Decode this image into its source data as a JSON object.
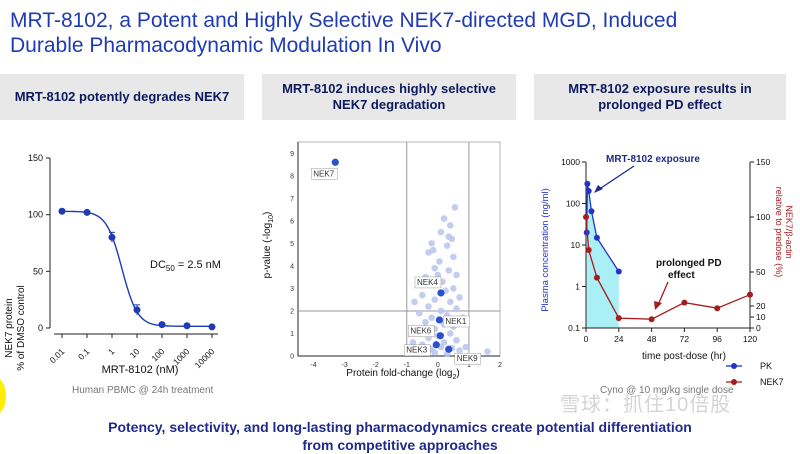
{
  "slide": {
    "title_line1": "MRT-8102, a Potent and Highly Selective NEK7-directed MGD, Induced",
    "title_line2": "Durable Pharmacodynamic Modulation In Vivo",
    "bottom_line1": "Potency, selectivity, and long-lasting pharmacodynamics create potential differentiation",
    "bottom_line2": "from competitive approaches",
    "watermark": "雪球：抓住10倍股"
  },
  "panels": {
    "left": {
      "header": "MRT-8102 potently degrades NEK7",
      "caption": "Human PBMC @ 24h treatment"
    },
    "middle": {
      "header_line1": "MRT-8102 induces highly selective",
      "header_line2": "NEK7 degradation"
    },
    "right": {
      "header_line1": "MRT-8102 exposure results in",
      "header_line2": "prolonged PD effect",
      "caption": "Cyno @ 10 mg/kg single dose"
    }
  },
  "chart_data": [
    {
      "type": "scatter",
      "title": "MRT-8102 potently degrades NEK7",
      "xlabel": "MRT-8102 (nM)",
      "ylabel_line1": "NEK7 protein",
      "ylabel_line2": "% of DMSO control",
      "xscale": "log",
      "x": [
        0.01,
        0.1,
        1,
        10,
        100,
        1000,
        10000
      ],
      "x_tick_labels": [
        "0.01",
        "0.1",
        "1",
        "10",
        "100",
        "1000",
        "10000"
      ],
      "y": [
        103,
        102,
        80,
        16,
        3,
        2,
        1
      ],
      "ylim": [
        0,
        150
      ],
      "y_ticks": [
        0,
        50,
        100,
        150
      ],
      "fit": "4-parameter logistic",
      "annotation_prefix": "DC",
      "annotation_sub": "50",
      "annotation_suffix": " = 2.5 nM",
      "color": "#1f3bb3"
    },
    {
      "type": "scatter",
      "title": "MRT-8102 induces highly selective NEK7 degradation",
      "xlabel": "Protein fold-change (log",
      "xlabel_sub": "2",
      "xlabel_close": ")",
      "ylabel": "p-value (-log",
      "ylabel_sub": "10",
      "ylabel_close": ")",
      "xlim": [
        -4.5,
        2
      ],
      "ylim": [
        0,
        9.5
      ],
      "x_ticks": [
        -4,
        -3,
        -2,
        -1,
        0,
        1,
        2
      ],
      "y_ticks": [
        0,
        1,
        2,
        3,
        4,
        5,
        6,
        7,
        8,
        9
      ],
      "threshold_x": [
        -1,
        1
      ],
      "threshold_y": 2,
      "highlighted": [
        {
          "label": "NEK7",
          "x": -3.3,
          "y": 8.6
        },
        {
          "label": "NEK4",
          "x": 0.1,
          "y": 2.8
        },
        {
          "label": "NEK1",
          "x": 0.05,
          "y": 1.6
        },
        {
          "label": "NEK6",
          "x": 0.08,
          "y": 0.9
        },
        {
          "label": "NEK3",
          "x": -0.05,
          "y": 0.5
        },
        {
          "label": "NEK9",
          "x": 0.35,
          "y": 0.3
        }
      ],
      "background_points": [
        [
          -0.2,
          5.0
        ],
        [
          0.1,
          5.5
        ],
        [
          0.3,
          4.9
        ],
        [
          0.4,
          5.8
        ],
        [
          0.2,
          6.1
        ],
        [
          -0.3,
          4.6
        ],
        [
          0.5,
          4.4
        ],
        [
          0.45,
          5.2
        ],
        [
          0.05,
          4.2
        ],
        [
          -0.1,
          3.9
        ],
        [
          0.35,
          3.8
        ],
        [
          0.6,
          3.6
        ],
        [
          -0.4,
          3.5
        ],
        [
          0.15,
          3.3
        ],
        [
          -0.2,
          3.2
        ],
        [
          0.5,
          3.0
        ],
        [
          0.25,
          2.9
        ],
        [
          -0.5,
          2.7
        ],
        [
          0.7,
          2.6
        ],
        [
          -0.1,
          2.5
        ],
        [
          0.4,
          2.4
        ],
        [
          -0.3,
          2.2
        ],
        [
          0.6,
          2.1
        ],
        [
          0.1,
          2.0
        ],
        [
          -0.6,
          1.9
        ],
        [
          0.3,
          1.8
        ],
        [
          -0.2,
          1.7
        ],
        [
          0.8,
          1.7
        ],
        [
          -0.4,
          1.5
        ],
        [
          0.2,
          1.4
        ],
        [
          0.5,
          1.3
        ],
        [
          -0.1,
          1.2
        ],
        [
          -0.7,
          1.1
        ],
        [
          0.4,
          1.0
        ],
        [
          0.0,
          0.9
        ],
        [
          -0.3,
          0.8
        ],
        [
          0.6,
          0.7
        ],
        [
          0.2,
          0.6
        ],
        [
          -0.5,
          0.5
        ],
        [
          0.1,
          0.4
        ],
        [
          -0.2,
          0.3
        ],
        [
          0.45,
          0.35
        ],
        [
          -0.1,
          0.15
        ],
        [
          0.3,
          0.1
        ],
        [
          -0.35,
          0.2
        ],
        [
          0.7,
          0.25
        ],
        [
          -0.6,
          0.3
        ],
        [
          0.9,
          0.4
        ],
        [
          1.6,
          0.2
        ],
        [
          -0.8,
          0.6
        ],
        [
          0.85,
          1.5
        ],
        [
          -0.75,
          2.4
        ],
        [
          0.55,
          6.6
        ],
        [
          0.35,
          5.3
        ],
        [
          -0.15,
          4.7
        ],
        [
          0.0,
          3.6
        ]
      ],
      "color_highlight": "#2a4fcf",
      "color_background": "#b8c4ec"
    },
    {
      "type": "line",
      "title": "MRT-8102 exposure results in prolonged PD effect",
      "xlabel": "time post-dose (hr)",
      "ylabel_left": "Plasma concentration (ng/ml)",
      "ylabel_right_line1": "NEK7/β-actin",
      "ylabel_right_line2": "relative to predose (%)",
      "xlim": [
        0,
        120
      ],
      "x_ticks": [
        0,
        24,
        48,
        72,
        96,
        120
      ],
      "y_left_scale": "log",
      "y_left_ticks": [
        0.1,
        1,
        10,
        100,
        1000
      ],
      "y_left_tick_labels": [
        "0.1",
        "1",
        "10",
        "100",
        "1000"
      ],
      "y_right_ticks": [
        0,
        10,
        20,
        50,
        100,
        150
      ],
      "y_right_tick_labels": [
        "0",
        "10",
        "20",
        "50",
        "100",
        "150"
      ],
      "series": [
        {
          "name": "PK",
          "axis": "left",
          "color": "#2233cc",
          "x": [
            0.5,
            1,
            2,
            4,
            8,
            24
          ],
          "y": [
            20,
            300,
            200,
            65,
            15,
            2.3
          ]
        },
        {
          "name": "NEK7",
          "axis": "right",
          "color": "#a61c1c",
          "x": [
            0,
            2,
            8,
            24,
            48,
            72,
            96,
            120
          ],
          "y": [
            100,
            70,
            45,
            9,
            8,
            23,
            18,
            30
          ]
        }
      ],
      "annotations": [
        {
          "text": "MRT-8102 exposure"
        },
        {
          "text_line1": "prolonged PD",
          "text_line2": "effect"
        }
      ],
      "shaded_region": [
        0,
        24
      ],
      "shade_color": "#8eeaf2"
    }
  ]
}
